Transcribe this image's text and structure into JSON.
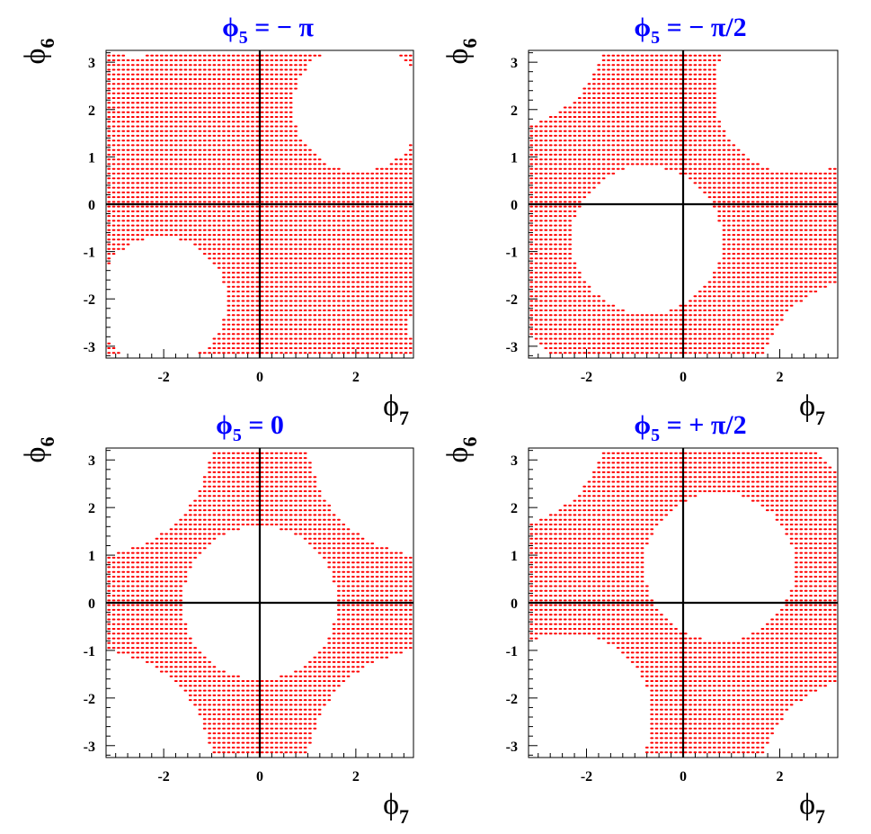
{
  "chart_data": [
    {
      "type": "scatter",
      "title_parts": {
        "base": "ϕ",
        "sub": "5",
        "rest": " = − π"
      },
      "xlabel_parts": {
        "base": "ϕ",
        "sub": "7"
      },
      "ylabel_parts": {
        "base": "ϕ",
        "sub": "6"
      },
      "xlim": [
        -3.2,
        3.2
      ],
      "ylim": [
        -3.25,
        3.25
      ],
      "xticks": [
        -2,
        0,
        2
      ],
      "yticks": [
        -3,
        -2,
        -1,
        0,
        1,
        2,
        3
      ],
      "marker_color": "#ff0000",
      "series": [
        {
          "values": "filled-grid-with-holes",
          "x_range": [
            -3.14,
            3.14
          ],
          "y_range": [
            -3.14,
            3.14
          ]
        }
      ],
      "excluded_regions": [
        {
          "center": [
            2.05,
            2.05
          ],
          "radius": 1.35
        },
        {
          "center": [
            -2.05,
            -2.05
          ],
          "radius": 1.35
        },
        {
          "center": [
            -2.55,
            3.3
          ],
          "radius": 0.25
        },
        {
          "center": [
            3.3,
            -2.55
          ],
          "radius": 0.25
        }
      ]
    },
    {
      "type": "scatter",
      "title_parts": {
        "base": "ϕ",
        "sub": "5",
        "rest": " = − π/2"
      },
      "xlabel_parts": {
        "base": "ϕ",
        "sub": "7"
      },
      "ylabel_parts": {
        "base": "ϕ",
        "sub": "6"
      },
      "xlim": [
        -3.2,
        3.2
      ],
      "ylim": [
        -3.25,
        3.25
      ],
      "xticks": [
        -2,
        0,
        2
      ],
      "yticks": [
        -3,
        -2,
        -1,
        0,
        1,
        2,
        3
      ],
      "marker_color": "#ff0000",
      "series": [
        {
          "values": "filled-grid-with-holes",
          "x_range": [
            -3.14,
            3.14
          ],
          "y_range": [
            -3.14,
            3.14
          ]
        }
      ],
      "excluded_regions": [
        {
          "center": [
            -0.75,
            -0.75
          ],
          "radius": 1.55
        },
        {
          "center": [
            2.4,
            2.4
          ],
          "radius": 1.75
        },
        {
          "center": [
            -3.9,
            3.9
          ],
          "radius": 2.35
        },
        {
          "center": [
            3.9,
            -3.9
          ],
          "radius": 2.35
        },
        {
          "center": [
            -3.7,
            -3.7
          ],
          "radius": 1.05
        }
      ]
    },
    {
      "type": "scatter",
      "title_parts": {
        "base": "ϕ",
        "sub": "5",
        "rest": " = 0"
      },
      "xlabel_parts": {
        "base": "ϕ",
        "sub": "7"
      },
      "ylabel_parts": {
        "base": "ϕ",
        "sub": "6"
      },
      "xlim": [
        -3.2,
        3.2
      ],
      "ylim": [
        -3.25,
        3.25
      ],
      "xticks": [
        -2,
        0,
        2
      ],
      "yticks": [
        -3,
        -2,
        -1,
        0,
        1,
        2,
        3
      ],
      "marker_color": "#ff0000",
      "series": [
        {
          "values": "filled-grid-with-holes",
          "x_range": [
            -3.14,
            3.14
          ],
          "y_range": [
            -3.14,
            3.14
          ]
        }
      ],
      "excluded_regions": [
        {
          "center": [
            0,
            0
          ],
          "radius": 1.6
        },
        {
          "center": [
            -3.5,
            3.5
          ],
          "radius": 2.5
        },
        {
          "center": [
            3.5,
            3.5
          ],
          "radius": 2.5
        },
        {
          "center": [
            -3.5,
            -3.5
          ],
          "radius": 2.5
        },
        {
          "center": [
            3.5,
            -3.5
          ],
          "radius": 2.5
        }
      ]
    },
    {
      "type": "scatter",
      "title_parts": {
        "base": "ϕ",
        "sub": "5",
        "rest": " = + π/2"
      },
      "xlabel_parts": {
        "base": "ϕ",
        "sub": "7"
      },
      "ylabel_parts": {
        "base": "ϕ",
        "sub": "6"
      },
      "xlim": [
        -3.2,
        3.2
      ],
      "ylim": [
        -3.25,
        3.25
      ],
      "xticks": [
        -2,
        0,
        2
      ],
      "yticks": [
        -3,
        -2,
        -1,
        0,
        1,
        2,
        3
      ],
      "marker_color": "#ff0000",
      "series": [
        {
          "values": "filled-grid-with-holes",
          "x_range": [
            -3.14,
            3.14
          ],
          "y_range": [
            -3.14,
            3.14
          ]
        }
      ],
      "excluded_regions": [
        {
          "center": [
            0.75,
            0.75
          ],
          "radius": 1.55
        },
        {
          "center": [
            -2.4,
            -2.4
          ],
          "radius": 1.75
        },
        {
          "center": [
            -3.9,
            3.9
          ],
          "radius": 2.35
        },
        {
          "center": [
            3.9,
            -3.9
          ],
          "radius": 2.35
        },
        {
          "center": [
            3.7,
            3.7
          ],
          "radius": 1.05
        }
      ]
    }
  ],
  "colors": {
    "title": "#0000ff",
    "axes": "#000000",
    "markers": "#ff0000"
  }
}
